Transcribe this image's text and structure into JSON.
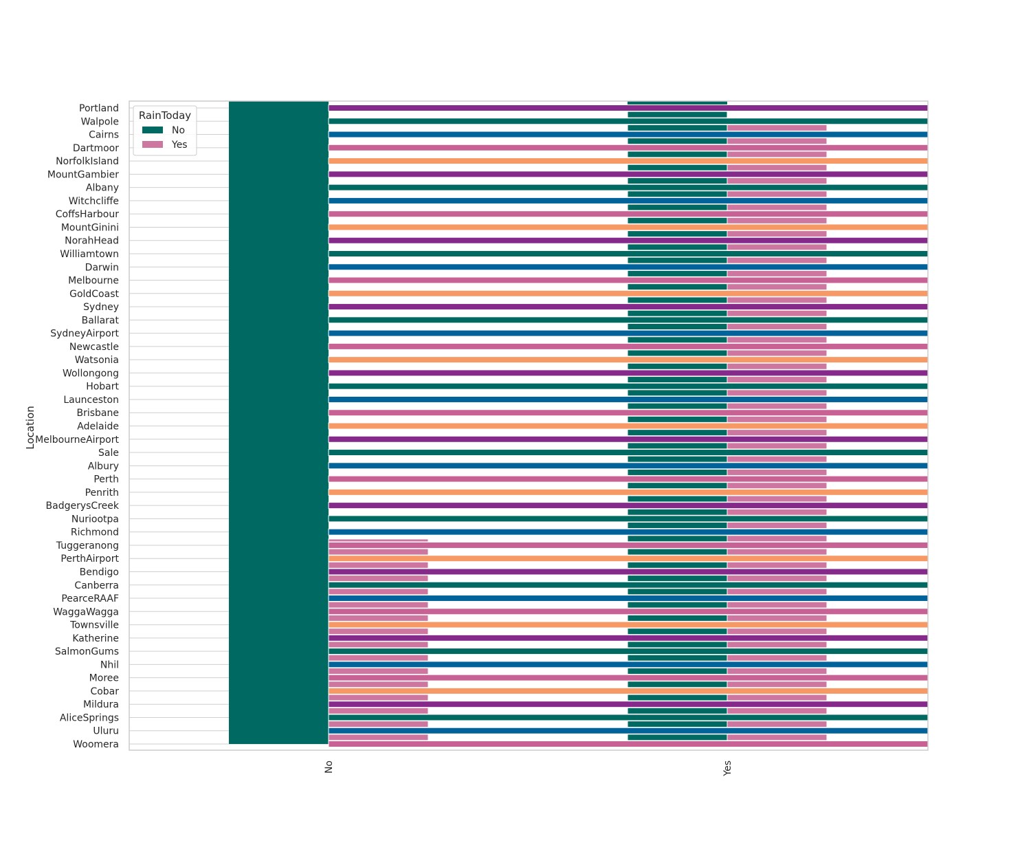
{
  "chart_data": {
    "type": "bar",
    "orientation": "horizontal",
    "title": "",
    "ylabel": "Location",
    "xlabel": "",
    "categories": [
      "Portland",
      "Walpole",
      "Cairns",
      "Dartmoor",
      "NorfolkIsland",
      "MountGambier",
      "Albany",
      "Witchcliffe",
      "CoffsHarbour",
      "MountGinini",
      "NorahHead",
      "Williamtown",
      "Darwin",
      "Melbourne",
      "GoldCoast",
      "Sydney",
      "Ballarat",
      "SydneyAirport",
      "Newcastle",
      "Watsonia",
      "Wollongong",
      "Hobart",
      "Launceston",
      "Brisbane",
      "Adelaide",
      "MelbourneAirport",
      "Sale",
      "Albury",
      "Perth",
      "Penrith",
      "BadgerysCreek",
      "Nuriootpa",
      "Richmond",
      "Tuggeranong",
      "PerthAirport",
      "Bendigo",
      "Canberra",
      "PearceRAAF",
      "WaggaWagga",
      "Townsville",
      "Katherine",
      "SalmonGums",
      "Nhil",
      "Moree",
      "Cobar",
      "Mildura",
      "AliceSprings",
      "Uluru",
      "Woomera"
    ],
    "x_ticks": [
      "No",
      "Yes"
    ],
    "grid": true,
    "legend": {
      "title": "RainToday",
      "placement": "top-left",
      "entries": [
        {
          "label": "No",
          "color": "#006962"
        },
        {
          "label": "Yes",
          "color": "#cd76a0"
        }
      ]
    },
    "band_colors": [
      "#85298a",
      "#006962",
      "#02639a",
      "#c86194",
      "#f79965"
    ],
    "colors": {
      "no": "#006962",
      "yes": "#cd76a0"
    },
    "yes_start_category": "Tuggeranong"
  }
}
